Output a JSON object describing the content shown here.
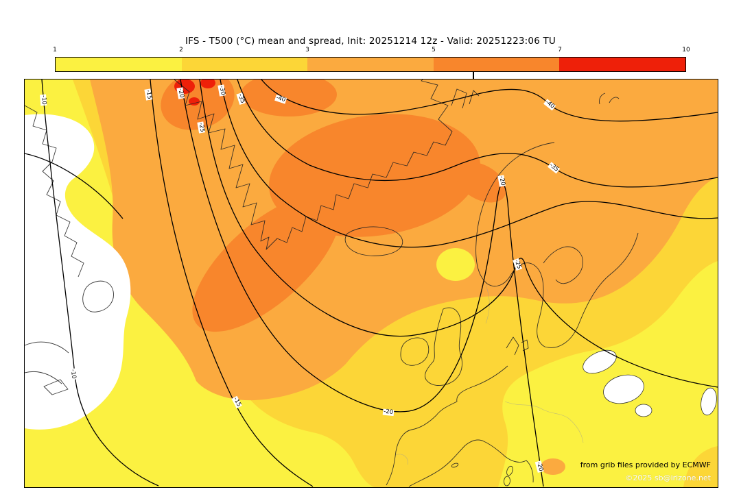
{
  "header": {
    "title": "IFS - T500 (°C) mean and spread, Init: 20251214 12z - Valid: 20251223:06 TU"
  },
  "colorbar": {
    "ticks": [
      "1",
      "2",
      "3",
      "5",
      "7",
      "10"
    ],
    "below_min_color": "#ffffff",
    "segments": [
      {
        "range": "1-2",
        "color": "#fbf141"
      },
      {
        "range": "2-3",
        "color": "#fcd637"
      },
      {
        "range": "3-5",
        "color": "#fbaa3f"
      },
      {
        "range": "5-7",
        "color": "#f8862c"
      },
      {
        "range": "7-10",
        "color": "#ee2009"
      }
    ]
  },
  "map": {
    "contour_values": {
      "m10": "-10",
      "m15": "-15",
      "m20": "-20",
      "m25": "-25",
      "m30": "-30",
      "m35": "-35",
      "m40": "-40"
    },
    "attribution": "from grib files provided by ECMWF",
    "copyright": "©2025 sb@irizone.net"
  },
  "chart_data": {
    "type": "heatmap",
    "title": "IFS - T500 (°C) mean and spread, Init: 20251214 12z - Valid: 20251223:06 TU",
    "model": "IFS",
    "parameter": "T500 (°C) mean and spread",
    "init": "20251214 12z",
    "valid": "20251223:06 TU",
    "colorbar_values": [
      1,
      2,
      3,
      5,
      7,
      10
    ],
    "colorbar_colors": [
      "#fbf141",
      "#fcd637",
      "#fbaa3f",
      "#f8862c",
      "#ee2009"
    ],
    "contour_levels_c": [
      -40,
      -35,
      -30,
      -25,
      -20,
      -15,
      -10
    ],
    "legend_position": "top",
    "region": "North Atlantic / Europe"
  }
}
